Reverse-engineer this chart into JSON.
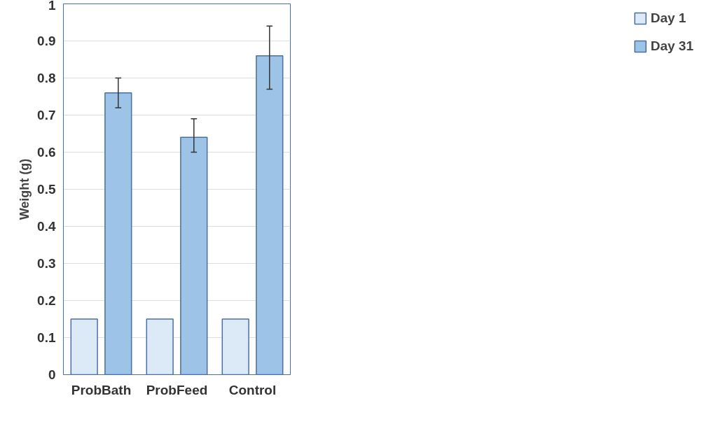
{
  "chart_data": {
    "type": "bar",
    "ylabel": "Weight (g)",
    "categories": [
      "ProbBath",
      "ProbFeed",
      "Control"
    ],
    "series": [
      {
        "name": "Day 1",
        "color": "#dce9f6",
        "values": [
          0.15,
          0.15,
          0.15
        ]
      },
      {
        "name": "Day 31",
        "color": "#9dc3e6",
        "values": [
          0.76,
          0.64,
          0.86
        ],
        "errors": [
          [
            0.72,
            0.8
          ],
          [
            0.6,
            0.69
          ],
          [
            0.77,
            0.94
          ]
        ]
      }
    ],
    "ylim": [
      0,
      1
    ],
    "yticks": [
      0,
      0.1,
      0.2,
      0.3,
      0.4,
      0.5,
      0.6,
      0.7,
      0.8,
      0.9,
      1
    ],
    "grid": "y",
    "legend": "right"
  }
}
